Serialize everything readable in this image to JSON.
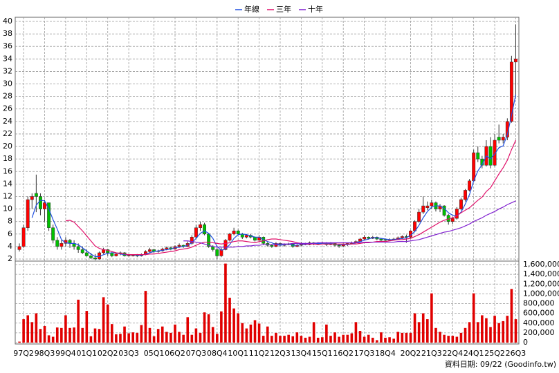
{
  "chart_data": {
    "type": "candlestick",
    "up_color": "#ff0000",
    "down_color": "#00c000",
    "volume_color": "#e00000",
    "grid": true,
    "ylim": [
      2,
      40
    ],
    "yticks": [
      2,
      4,
      6,
      8,
      10,
      12,
      14,
      16,
      18,
      20,
      22,
      24,
      26,
      28,
      30,
      32,
      34,
      36,
      38,
      40
    ],
    "y2lim": [
      0,
      1600000
    ],
    "y2ticks": [
      0,
      {
        "value": 200000,
        "label": "200,000"
      },
      {
        "value": 400000,
        "label": "400,000"
      },
      {
        "value": 600000,
        "label": "600,000"
      },
      {
        "value": 800000,
        "label": "800,000"
      },
      {
        "value": 1000000,
        "label": "1,000,000"
      },
      {
        "value": 1200000,
        "label": "1,200,000"
      },
      {
        "value": 1400000,
        "label": "1,400,000"
      },
      {
        "value": 1600000,
        "label": "1,600,000"
      }
    ],
    "xticks": [
      {
        "value": 1,
        "label": "97Q2"
      },
      {
        "value": 6,
        "label": "98Q3"
      },
      {
        "value": 11,
        "label": "99Q4"
      },
      {
        "value": 16,
        "label": "01Q1"
      },
      {
        "value": 21,
        "label": "02Q2"
      },
      {
        "value": 26,
        "label": "03Q3"
      },
      {
        "value": 32,
        "label": "05Q1"
      },
      {
        "value": 37,
        "label": "06Q2"
      },
      {
        "value": 42,
        "label": "07Q3"
      },
      {
        "value": 47,
        "label": "08Q4"
      },
      {
        "value": 52,
        "label": "10Q1"
      },
      {
        "value": 57,
        "label": "11Q2"
      },
      {
        "value": 62,
        "label": "12Q3"
      },
      {
        "value": 67,
        "label": "13Q4"
      },
      {
        "value": 72,
        "label": "15Q1"
      },
      {
        "value": 77,
        "label": "16Q2"
      },
      {
        "value": 82,
        "label": "17Q3"
      },
      {
        "value": 87,
        "label": "18Q4"
      },
      {
        "value": 93,
        "label": "20Q2"
      },
      {
        "value": 98,
        "label": "21Q3"
      },
      {
        "value": 103,
        "label": "22Q4"
      },
      {
        "value": 108,
        "label": "24Q1"
      },
      {
        "value": 113,
        "label": "25Q2"
      },
      {
        "value": 118,
        "label": "26Q3"
      }
    ],
    "ohlc": [
      [
        3.5,
        4.5,
        3.2,
        4
      ],
      [
        4,
        7.5,
        3.8,
        7
      ],
      [
        7,
        12,
        6.5,
        11.5
      ],
      [
        11.5,
        12.5,
        10,
        12
      ],
      [
        12.5,
        15.5,
        9.5,
        12
      ],
      [
        12,
        12.5,
        9,
        10
      ],
      [
        10,
        11.5,
        8,
        11
      ],
      [
        11,
        11,
        6.5,
        7
      ],
      [
        7,
        7.5,
        4.5,
        5
      ],
      [
        5,
        5.5,
        3.5,
        4
      ],
      [
        4,
        5,
        3.5,
        4.5
      ],
      [
        4.5,
        5.5,
        4,
        5
      ],
      [
        5,
        5.2,
        3.8,
        4.5
      ],
      [
        4.5,
        5,
        3.5,
        4
      ],
      [
        4,
        4.5,
        3,
        3.5
      ],
      [
        3.5,
        4,
        2.8,
        3
      ],
      [
        3,
        3.5,
        2.4,
        2.5
      ],
      [
        2.5,
        3,
        2,
        2.2
      ],
      [
        2.2,
        2.8,
        1.8,
        2
      ],
      [
        2,
        3.2,
        1.9,
        3
      ],
      [
        3,
        3.8,
        2.8,
        3.5
      ],
      [
        3.5,
        3.6,
        2.5,
        3
      ],
      [
        3,
        3.2,
        2.3,
        2.5
      ],
      [
        2.5,
        3,
        2.4,
        2.8
      ],
      [
        2.8,
        3.2,
        2.6,
        3
      ],
      [
        3,
        3.1,
        2.4,
        2.5
      ],
      [
        2.5,
        2.8,
        2.4,
        2.6
      ],
      [
        2.6,
        2.7,
        2.4,
        2.6
      ],
      [
        2.6,
        2.8,
        2.3,
        2.5
      ],
      [
        2.5,
        2.9,
        2.4,
        2.7
      ],
      [
        2.7,
        3.4,
        2.6,
        3.2
      ],
      [
        3.2,
        3.8,
        3,
        3.5
      ],
      [
        3.5,
        3.6,
        3,
        3.2
      ],
      [
        3.2,
        3.5,
        3,
        3.3
      ],
      [
        3.3,
        3.8,
        3.2,
        3.6
      ],
      [
        3.6,
        4,
        3.4,
        3.8
      ],
      [
        3.8,
        4,
        3.4,
        3.6
      ],
      [
        3.6,
        4.2,
        3.5,
        4
      ],
      [
        4,
        4.5,
        3.8,
        4.2
      ],
      [
        4.2,
        4.3,
        3.8,
        4
      ],
      [
        4,
        4.8,
        3.9,
        4.5
      ],
      [
        4.5,
        5.8,
        4.3,
        5.5
      ],
      [
        5.5,
        7.5,
        5.2,
        7
      ],
      [
        7,
        8,
        6.5,
        7.5
      ],
      [
        7.5,
        7.8,
        5.8,
        6
      ],
      [
        6,
        6.2,
        3.8,
        4
      ],
      [
        4,
        4.2,
        3.2,
        3.5
      ],
      [
        3.5,
        3.8,
        2,
        2.5
      ],
      [
        2.5,
        3.8,
        2.3,
        3.5
      ],
      [
        3.5,
        5.2,
        3.4,
        5
      ],
      [
        5,
        6.2,
        4.8,
        6
      ],
      [
        6,
        7,
        5.8,
        6.5
      ],
      [
        6.5,
        6.7,
        5.8,
        6
      ],
      [
        6,
        6.2,
        5.2,
        5.5
      ],
      [
        5.5,
        6,
        5.3,
        5.8
      ],
      [
        5.8,
        6,
        5.3,
        5.5
      ],
      [
        5.5,
        5.6,
        4.8,
        5
      ],
      [
        5,
        5.8,
        4.9,
        5.5
      ],
      [
        5.5,
        5.6,
        4.3,
        4.5
      ],
      [
        4.5,
        4.7,
        4,
        4.2
      ],
      [
        4.2,
        4.4,
        3.8,
        4
      ],
      [
        4,
        4.7,
        3.9,
        4.5
      ],
      [
        4.5,
        4.6,
        4,
        4.2
      ],
      [
        4.2,
        4.5,
        4,
        4.3
      ],
      [
        4.3,
        4.6,
        4.2,
        4.4
      ],
      [
        4.4,
        4.5,
        3.8,
        4
      ],
      [
        4,
        4.4,
        3.9,
        4.2
      ],
      [
        4.2,
        4.7,
        4.1,
        4.5
      ],
      [
        4.5,
        4.6,
        4.2,
        4.3
      ],
      [
        4.3,
        4.8,
        4.2,
        4.6
      ],
      [
        4.6,
        4.7,
        4.2,
        4.4
      ],
      [
        4.4,
        4.7,
        4.3,
        4.5
      ],
      [
        4.5,
        4.8,
        4.4,
        4.6
      ],
      [
        4.6,
        4.7,
        4.1,
        4.3
      ],
      [
        4.3,
        4.7,
        4.2,
        4.5
      ],
      [
        4.5,
        4.6,
        4,
        4.2
      ],
      [
        4.2,
        4.3,
        3.8,
        4.1
      ],
      [
        4.1,
        4.5,
        3.9,
        4.3
      ],
      [
        4.3,
        4.6,
        4.1,
        4.5
      ],
      [
        4.5,
        4.8,
        4.4,
        4.6
      ],
      [
        4.6,
        5,
        4.5,
        4.8
      ],
      [
        4.8,
        5.4,
        4.7,
        5.2
      ],
      [
        5.2,
        5.8,
        5,
        5.5
      ],
      [
        5.5,
        5.6,
        5.1,
        5.3
      ],
      [
        5.3,
        5.7,
        5.2,
        5.5
      ],
      [
        5.5,
        5.6,
        5,
        5.2
      ],
      [
        5.2,
        5.3,
        4.8,
        5
      ],
      [
        5.1,
        5.2,
        4.8,
        5
      ],
      [
        5,
        5.3,
        4.9,
        5.1
      ],
      [
        5.1,
        5.4,
        5,
        5.2
      ],
      [
        5.2,
        5.6,
        5.1,
        5.4
      ],
      [
        5.4,
        5.8,
        5.2,
        5.6
      ],
      [
        5.6,
        5.9,
        4.6,
        5.5
      ],
      [
        5.5,
        6.6,
        5.3,
        6.5
      ],
      [
        6.5,
        8.2,
        6.3,
        8
      ],
      [
        8,
        10,
        7.8,
        9.5
      ],
      [
        9.5,
        12,
        9.2,
        10.5
      ],
      [
        10.2,
        11.2,
        9.8,
        10.5
      ],
      [
        10.5,
        11.5,
        10,
        11
      ],
      [
        11,
        11.2,
        9.6,
        10
      ],
      [
        10,
        10.8,
        9.5,
        10.5
      ],
      [
        10.5,
        10.6,
        8.8,
        9
      ],
      [
        9,
        9.2,
        7.5,
        8
      ],
      [
        8,
        8.8,
        7.6,
        8.5
      ],
      [
        8.5,
        10.3,
        8.3,
        10
      ],
      [
        10,
        11.8,
        9.8,
        11.5
      ],
      [
        11.5,
        13.2,
        11.2,
        13
      ],
      [
        13,
        14.8,
        12.8,
        14.5
      ],
      [
        14.5,
        19.5,
        14.3,
        19
      ],
      [
        19,
        20,
        17.5,
        18
      ],
      [
        18,
        18.5,
        16.5,
        17
      ],
      [
        17,
        21,
        16.8,
        20
      ],
      [
        20,
        21.5,
        16.5,
        17
      ],
      [
        17,
        22,
        16.8,
        21
      ],
      [
        21.5,
        23.5,
        20.5,
        21
      ],
      [
        21,
        22,
        20.5,
        21.5
      ],
      [
        21.5,
        24.5,
        21,
        24
      ],
      [
        24,
        34.5,
        23.8,
        33.5
      ],
      [
        33.5,
        39.5,
        28,
        34
      ]
    ],
    "volume": [
      20000,
      480000,
      560000,
      420000,
      600000,
      280000,
      340000,
      150000,
      120000,
      310000,
      300000,
      560000,
      300000,
      310000,
      880000,
      300000,
      650000,
      130000,
      290000,
      280000,
      930000,
      780000,
      380000,
      170000,
      180000,
      330000,
      190000,
      210000,
      200000,
      360000,
      1060000,
      300000,
      130000,
      280000,
      330000,
      220000,
      200000,
      370000,
      220000,
      160000,
      520000,
      160000,
      290000,
      200000,
      620000,
      580000,
      320000,
      180000,
      640000,
      1620000,
      920000,
      700000,
      600000,
      400000,
      290000,
      370000,
      460000,
      390000,
      140000,
      330000,
      140000,
      200000,
      140000,
      140000,
      160000,
      130000,
      210000,
      140000,
      100000,
      120000,
      420000,
      100000,
      110000,
      370000,
      140000,
      210000,
      120000,
      160000,
      160000,
      190000,
      420000,
      240000,
      120000,
      160000,
      100000,
      50000,
      210000,
      100000,
      110000,
      80000,
      220000,
      200000,
      200000,
      200000,
      600000,
      420000,
      600000,
      480000,
      1010000,
      300000,
      220000,
      160000,
      140000,
      140000,
      120000,
      200000,
      300000,
      420000,
      1010000,
      420000,
      560000,
      500000,
      320000,
      550000,
      400000,
      440000,
      550000,
      1100000,
      480000
    ],
    "series": [
      {
        "name": "年線",
        "color": "#2050e0",
        "values": [
          null,
          null,
          null,
          8.6,
          10.6,
          11.4,
          11.3,
          10,
          8.3,
          6.8,
          5.1,
          4.6,
          4.5,
          4.5,
          4.3,
          3.8,
          3.3,
          2.8,
          2.4,
          2.4,
          2.7,
          2.9,
          3,
          3,
          2.8,
          2.7,
          2.7,
          2.7,
          2.6,
          2.6,
          2.8,
          3,
          3.2,
          3.3,
          3.4,
          3.5,
          3.6,
          3.8,
          3.9,
          4,
          4.2,
          4.6,
          5.3,
          6.1,
          6.5,
          6.1,
          5.3,
          4,
          3.4,
          3.6,
          4.3,
          5.3,
          5.9,
          6,
          5.9,
          5.7,
          5.5,
          5.5,
          5.1,
          4.8,
          4.6,
          4.3,
          4.2,
          4.3,
          4.4,
          4.2,
          4.2,
          4.3,
          4.3,
          4.4,
          4.5,
          4.5,
          4.5,
          4.5,
          4.5,
          4.4,
          4.3,
          4.3,
          4.3,
          4.4,
          4.6,
          4.8,
          5,
          5.2,
          5.4,
          5.4,
          5.3,
          5.2,
          5.1,
          5.1,
          5.2,
          5.3,
          5.4,
          5.8,
          6.4,
          7.4,
          8.6,
          9.6,
          10.3,
          10.5,
          10.5,
          10.1,
          9.4,
          9,
          8.9,
          9.5,
          10.8,
          12.3,
          14.5,
          16.1,
          17.1,
          18.5,
          18,
          18.8,
          19.8,
          20.1,
          21.9,
          25,
          28.3
        ]
      },
      {
        "name": "三年",
        "color": "#e0106a",
        "values": [
          null,
          null,
          null,
          null,
          null,
          null,
          null,
          null,
          null,
          null,
          null,
          8.1,
          8.2,
          7.9,
          7.2,
          6.5,
          5.7,
          4.9,
          4.1,
          3.7,
          3.5,
          3.4,
          3.2,
          3.0,
          2.9,
          2.8,
          2.7,
          2.7,
          2.7,
          2.7,
          2.7,
          2.8,
          2.8,
          2.9,
          3,
          3.1,
          3.2,
          3.3,
          3.5,
          3.6,
          3.7,
          3.9,
          4.2,
          4.5,
          4.7,
          4.7,
          4.6,
          4.5,
          4.4,
          4.5,
          4.6,
          4.8,
          4.9,
          4.9,
          4.8,
          4.7,
          4.6,
          4.8,
          4.9,
          5.1,
          5.2,
          5.2,
          5.1,
          5,
          4.9,
          4.8,
          4.6,
          4.5,
          4.4,
          4.4,
          4.4,
          4.3,
          4.4,
          4.4,
          4.4,
          4.4,
          4.4,
          4.4,
          4.4,
          4.4,
          4.4,
          4.5,
          4.6,
          4.6,
          4.7,
          4.8,
          4.8,
          4.8,
          4.9,
          5,
          5.1,
          5.1,
          5.2,
          5.3,
          5.6,
          5.9,
          6.3,
          6.7,
          7.1,
          7.5,
          7.9,
          8.2,
          8.4,
          8.6,
          8.9,
          9.4,
          9.8,
          10.2,
          10.8,
          11.4,
          11.9,
          12.8,
          13.4,
          14.5,
          15.6,
          16.6,
          17.8,
          19.5,
          21
        ]
      },
      {
        "name": "十年",
        "color": "#8020d0",
        "values": [
          null,
          null,
          null,
          null,
          null,
          null,
          null,
          null,
          null,
          null,
          null,
          null,
          null,
          null,
          null,
          null,
          null,
          null,
          null,
          null,
          null,
          null,
          null,
          null,
          null,
          null,
          null,
          null,
          null,
          null,
          null,
          null,
          null,
          null,
          null,
          null,
          null,
          null,
          null,
          4.9,
          4.9,
          4.8,
          4.7,
          4.6,
          4.4,
          4.2,
          4.0,
          3.9,
          3.9,
          3.9,
          3.9,
          3.9,
          4.0,
          4.0,
          4.1,
          4.1,
          4.2,
          4.2,
          4.3,
          4.3,
          4.3,
          4.4,
          4.4,
          4.4,
          4.4,
          4.5,
          4.5,
          4.5,
          4.5,
          4.5,
          4.5,
          4.6,
          4.6,
          4.6,
          4.6,
          4.6,
          4.6,
          4.6,
          4.6,
          4.6,
          4.6,
          4.6,
          4.7,
          4.7,
          4.7,
          4.7,
          4.7,
          4.7,
          4.7,
          4.7,
          4.8,
          4.8,
          4.8,
          4.9,
          5.0,
          5.1,
          5.3,
          5.5,
          5.7,
          5.9,
          6.1,
          6.3,
          6.4,
          6.6,
          6.8,
          7.0,
          7.3,
          7.6,
          8.0,
          8.3,
          8.6,
          9.0,
          9.3,
          9.6,
          10.0,
          10.3,
          10.7,
          11.0,
          11.3
        ]
      }
    ],
    "date_note": "資料日期: 09/22 (Goodinfo.tw)"
  }
}
